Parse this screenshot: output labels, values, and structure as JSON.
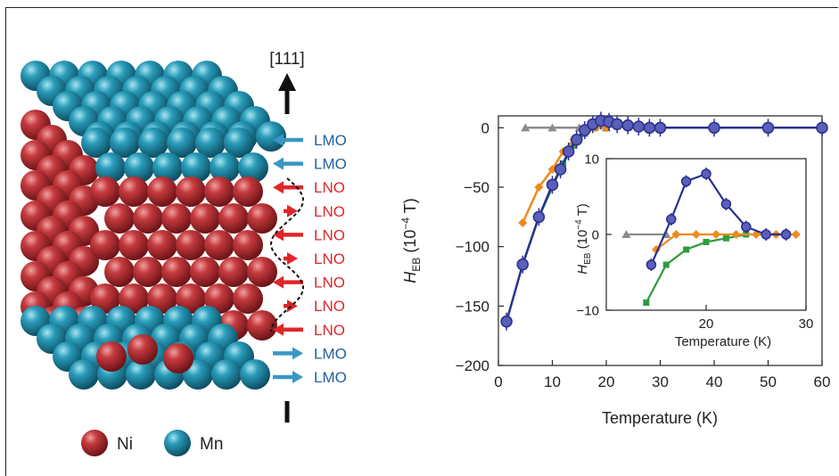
{
  "figure": {
    "direction_label": "[111]",
    "layers": [
      {
        "label": "LMO",
        "color": "#1f5f9f"
      },
      {
        "label": "LMO",
        "color": "#1f5f9f"
      },
      {
        "label": "LNO",
        "color": "#e0262a"
      },
      {
        "label": "LNO",
        "color": "#e0262a"
      },
      {
        "label": "LNO",
        "color": "#e0262a"
      },
      {
        "label": "LNO",
        "color": "#e0262a"
      },
      {
        "label": "LNO",
        "color": "#e0262a"
      },
      {
        "label": "LNO",
        "color": "#e0262a"
      },
      {
        "label": "LNO",
        "color": "#e0262a"
      },
      {
        "label": "LMO",
        "color": "#1f5f9f"
      },
      {
        "label": "LMO",
        "color": "#1f5f9f"
      }
    ],
    "legend": [
      {
        "label": "Ni",
        "color": "#a52226"
      },
      {
        "label": "Mn",
        "color": "#1a8aa8"
      }
    ]
  },
  "chart_data": [
    {
      "type": "line",
      "xlabel": "Temperature (K)",
      "ylabel": "HEB (10−4 T)",
      "xlim": [
        0,
        60
      ],
      "ylim": [
        -200,
        10
      ],
      "xticks": [
        "0",
        "10",
        "20",
        "30",
        "40",
        "50",
        "60"
      ],
      "yticks": [
        "0",
        "−50",
        "−100",
        "−150",
        "−200"
      ],
      "series": [
        {
          "color": "#2b2f8f",
          "x": [
            1.5,
            4.5,
            7.5,
            10,
            11.5,
            13,
            14.5,
            16,
            17.5,
            19,
            20.5,
            22,
            24,
            26,
            28,
            30,
            40,
            50,
            60
          ],
          "y": [
            -163,
            -115,
            -75,
            -48,
            -35,
            -20,
            -10,
            -2,
            3,
            6,
            5,
            3,
            2,
            1,
            0,
            0,
            0,
            0,
            0
          ]
        },
        {
          "color": "#f08a1c",
          "x": [
            4.5,
            7.5,
            10,
            12,
            14,
            16,
            18,
            20
          ],
          "y": [
            -80,
            -50,
            -35,
            -20,
            -10,
            -3,
            0,
            0
          ]
        },
        {
          "color": "#2e9b3e",
          "x": [
            4.5,
            7.5,
            10,
            12,
            14,
            16,
            18,
            20
          ],
          "y": [
            -115,
            -75,
            -50,
            -30,
            -15,
            -5,
            0,
            0
          ]
        },
        {
          "color": "#8c8c8c",
          "x": [
            5,
            10,
            15,
            20
          ],
          "y": [
            0,
            0,
            0,
            0
          ]
        }
      ]
    },
    {
      "type": "line",
      "xlabel": "Temperature (K)",
      "ylabel": "HEB (10−4 T)",
      "xlim": [
        10,
        30
      ],
      "ylim": [
        -10,
        10
      ],
      "xticks": [
        "20",
        "30"
      ],
      "yticks": [
        "10",
        "0",
        "−10"
      ],
      "series": [
        {
          "color": "#2b2f8f",
          "x": [
            14.5,
            16.5,
            18,
            20,
            22,
            24,
            26,
            28
          ],
          "y": [
            -4,
            2,
            7,
            8,
            4,
            1,
            0,
            0
          ]
        },
        {
          "color": "#f08a1c",
          "x": [
            15,
            17,
            19,
            21,
            23,
            25,
            27,
            29
          ],
          "y": [
            -2,
            0,
            0,
            0,
            0,
            0,
            0,
            0
          ]
        },
        {
          "color": "#2e9b3e",
          "x": [
            14,
            16,
            18,
            20,
            22,
            24,
            26
          ],
          "y": [
            -9,
            -4,
            -2,
            -1,
            -0.5,
            0,
            0
          ]
        },
        {
          "color": "#8c8c8c",
          "x": [
            12,
            16
          ],
          "y": [
            0,
            0
          ]
        }
      ]
    }
  ]
}
